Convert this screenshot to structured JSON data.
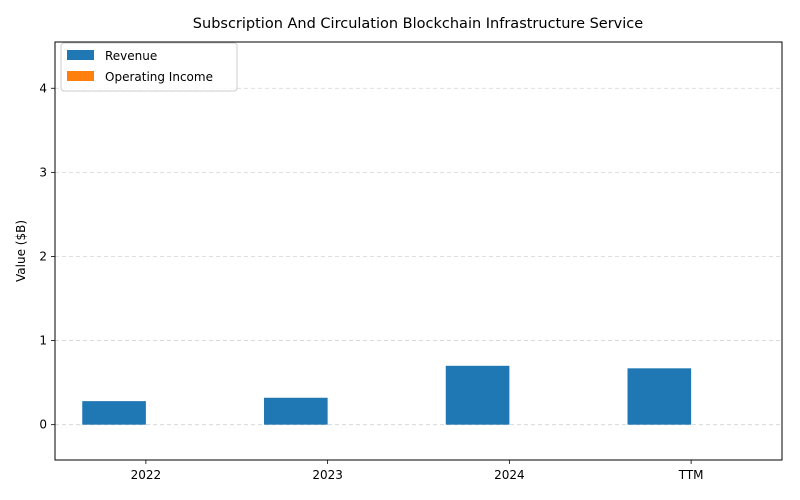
{
  "chart_data": {
    "type": "bar",
    "title": "Subscription And Circulation Blockchain Infrastructure Service",
    "xlabel": "",
    "ylabel": "Value ($B)",
    "categories": [
      "2022",
      "2023",
      "2024",
      "TTM"
    ],
    "series": [
      {
        "name": "Revenue",
        "color": "#1f77b4",
        "values": [
          0.28,
          0.32,
          0.7,
          0.67
        ]
      },
      {
        "name": "Operating Income",
        "color": "#ff7f0e",
        "values": [
          0,
          0,
          0,
          0
        ]
      }
    ],
    "ylim": [
      -0.42,
      4.55
    ],
    "yticks": [
      0,
      1,
      2,
      3,
      4
    ],
    "ytick_labels": [
      "0",
      "1",
      "2",
      "3",
      "4"
    ],
    "grid": "y-dashed",
    "legend_position": "top-left"
  }
}
